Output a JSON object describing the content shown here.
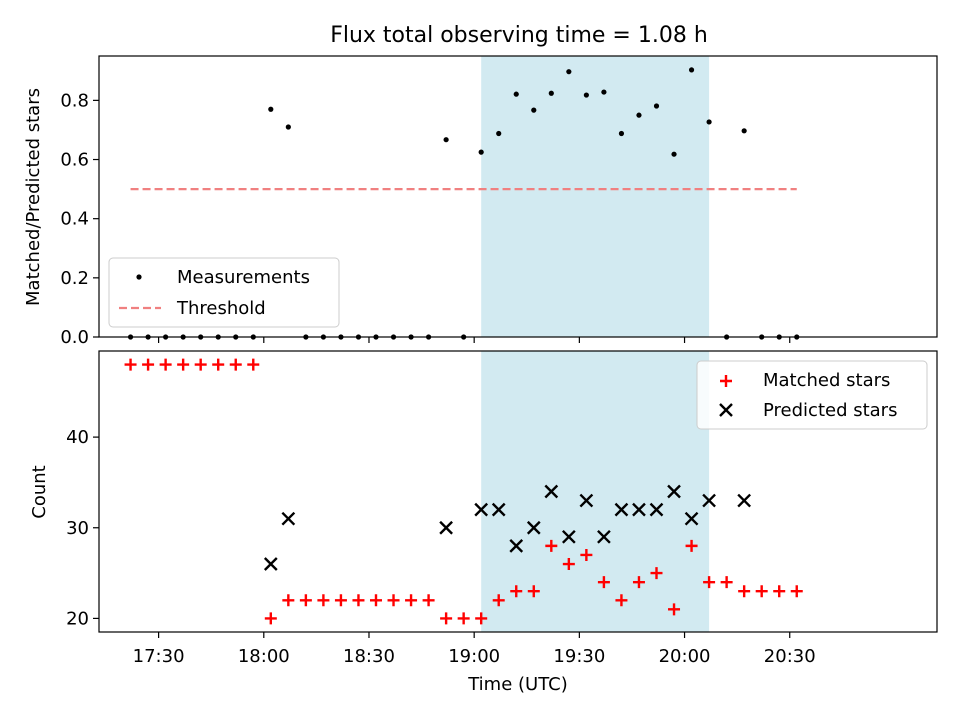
{
  "title": "Flux total observing time = 1.08 h",
  "x_axis": {
    "label": "Time (UTC)",
    "unit": "minutes after midnight UTC",
    "range": [
      1033,
      1272
    ],
    "ticks": [
      {
        "value": 1050,
        "label": "17:30"
      },
      {
        "value": 1080,
        "label": "18:00"
      },
      {
        "value": 1110,
        "label": "18:30"
      },
      {
        "value": 1140,
        "label": "19:00"
      },
      {
        "value": 1170,
        "label": "19:30"
      },
      {
        "value": 1200,
        "label": "20:00"
      },
      {
        "value": 1230,
        "label": "20:30"
      }
    ]
  },
  "observing_window": {
    "start": 1142,
    "end": 1207,
    "color": "#add8e6"
  },
  "chart_data": [
    {
      "type": "scatter",
      "title": "Flux total observing time = 1.08 h",
      "xlabel": "Time (UTC)",
      "ylabel": "Matched/Predicted stars",
      "ylim": [
        0,
        0.95
      ],
      "yticks": [
        {
          "value": 0.0,
          "label": "0.0"
        },
        {
          "value": 0.2,
          "label": "0.2"
        },
        {
          "value": 0.4,
          "label": "0.4"
        },
        {
          "value": 0.6,
          "label": "0.6"
        },
        {
          "value": 0.8,
          "label": "0.8"
        }
      ],
      "legend_position": "lower-left",
      "series": [
        {
          "name": "Measurements",
          "marker": "dot",
          "color": "#000000",
          "x": [
            1042,
            1047,
            1052,
            1057,
            1062,
            1067,
            1072,
            1077,
            1082,
            1087,
            1092,
            1097,
            1102,
            1107,
            1112,
            1117,
            1122,
            1127,
            1132,
            1137,
            1142,
            1147,
            1152,
            1157,
            1162,
            1167,
            1172,
            1177,
            1182,
            1187,
            1192,
            1197,
            1202,
            1207,
            1212,
            1217,
            1222,
            1227,
            1232
          ],
          "y": [
            0,
            0,
            0,
            0,
            0,
            0,
            0,
            0,
            0.77,
            0.71,
            0,
            0,
            0,
            0,
            0,
            0,
            0,
            0,
            0.667,
            0,
            0.625,
            0.688,
            0.821,
            0.767,
            0.824,
            0.897,
            0.818,
            0.828,
            0.688,
            0.75,
            0.781,
            0.618,
            0.903,
            0.727,
            0,
            0.697,
            0,
            0,
            0
          ]
        },
        {
          "name": "Threshold",
          "kind": "dashed-line",
          "color": "#f08080",
          "x": [
            1042,
            1232
          ],
          "y": [
            0.5,
            0.5
          ]
        }
      ]
    },
    {
      "type": "scatter",
      "xlabel": "Time (UTC)",
      "ylabel": "Count",
      "ylim": [
        18.5,
        49.5
      ],
      "yticks": [
        {
          "value": 20,
          "label": "20"
        },
        {
          "value": 30,
          "label": "30"
        },
        {
          "value": 40,
          "label": "40"
        }
      ],
      "legend_position": "upper-right",
      "series": [
        {
          "name": "Matched stars",
          "marker": "plus",
          "color": "#ff0000",
          "x": [
            1042,
            1047,
            1052,
            1057,
            1062,
            1067,
            1072,
            1077,
            1082,
            1087,
            1092,
            1097,
            1102,
            1107,
            1112,
            1117,
            1122,
            1127,
            1132,
            1137,
            1142,
            1147,
            1152,
            1157,
            1162,
            1167,
            1172,
            1177,
            1182,
            1187,
            1192,
            1197,
            1202,
            1207,
            1212,
            1217,
            1222,
            1227,
            1232
          ],
          "y": [
            48,
            48,
            48,
            48,
            48,
            48,
            48,
            48,
            20,
            22,
            22,
            22,
            22,
            22,
            22,
            22,
            22,
            22,
            20,
            20,
            20,
            22,
            23,
            23,
            28,
            26,
            27,
            24,
            22,
            24,
            25,
            21,
            28,
            24,
            24,
            23,
            23,
            23,
            23
          ]
        },
        {
          "name": "Predicted stars",
          "marker": "x",
          "color": "#000000",
          "x": [
            1082,
            1087,
            1132,
            1142,
            1147,
            1152,
            1157,
            1162,
            1167,
            1172,
            1177,
            1182,
            1187,
            1192,
            1197,
            1202,
            1207,
            1217
          ],
          "y": [
            26,
            31,
            30,
            32,
            32,
            28,
            30,
            34,
            29,
            33,
            29,
            32,
            32,
            32,
            34,
            31,
            33,
            33
          ]
        }
      ]
    }
  ]
}
